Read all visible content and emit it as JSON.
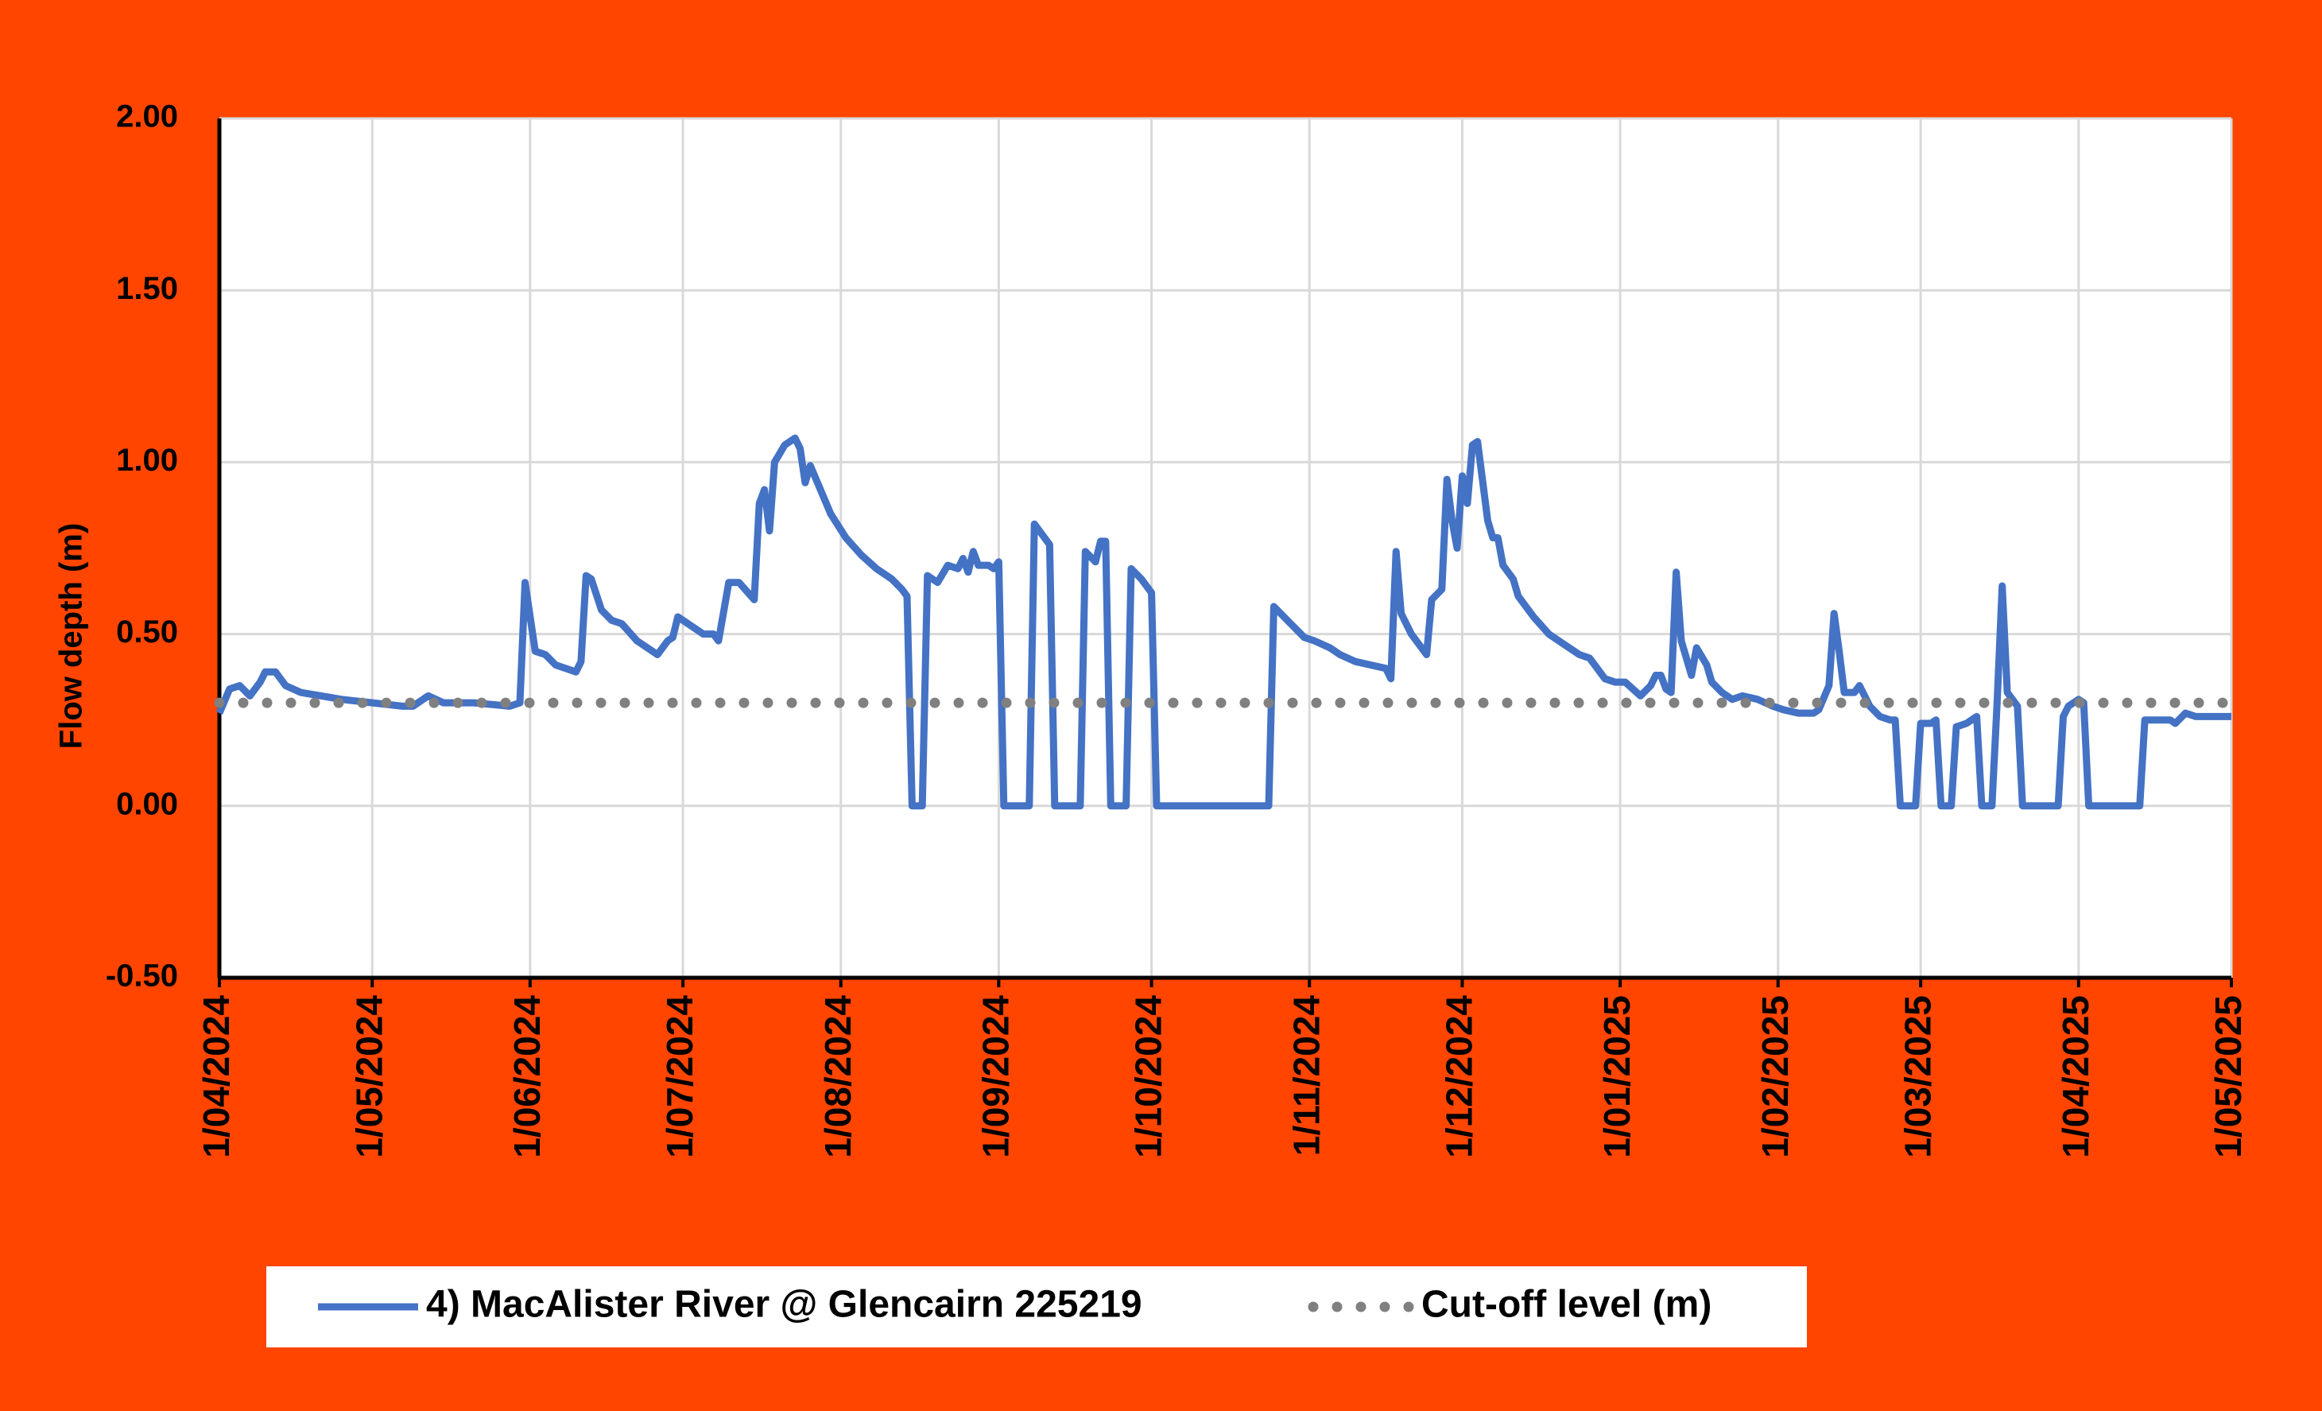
{
  "chart_data": {
    "type": "line",
    "y_label": "Flow depth (m)",
    "ylim": [
      -0.5,
      2
    ],
    "yticks": [
      {
        "value": -0.5,
        "label": "-0.50"
      },
      {
        "value": 0,
        "label": "0.00"
      },
      {
        "value": 0.5,
        "label": "0.50"
      },
      {
        "value": 1,
        "label": "1.00"
      },
      {
        "value": 1.5,
        "label": "1.50"
      },
      {
        "value": 2,
        "label": "2.00"
      }
    ],
    "xlim": [
      "2024-04-01",
      "2025-05-01"
    ],
    "xticks": [
      {
        "value": "2024-04-01",
        "label": "1/04/2024"
      },
      {
        "value": "2024-05-01",
        "label": "1/05/2024"
      },
      {
        "value": "2024-06-01",
        "label": "1/06/2024"
      },
      {
        "value": "2024-07-01",
        "label": "1/07/2024"
      },
      {
        "value": "2024-08-01",
        "label": "1/08/2024"
      },
      {
        "value": "2024-09-01",
        "label": "1/09/2024"
      },
      {
        "value": "2024-10-01",
        "label": "1/10/2024"
      },
      {
        "value": "2024-11-01",
        "label": "1/11/2024"
      },
      {
        "value": "2024-12-01",
        "label": "1/12/2024"
      },
      {
        "value": "2025-01-01",
        "label": "1/01/2025"
      },
      {
        "value": "2025-02-01",
        "label": "1/02/2025"
      },
      {
        "value": "2025-03-01",
        "label": "1/03/2025"
      },
      {
        "value": "2025-04-01",
        "label": "1/04/2025"
      },
      {
        "value": "2025-05-01",
        "label": "1/05/2025"
      }
    ],
    "grid": true,
    "legend": "bottom",
    "x": [
      "2024-04-01",
      "2024-04-03",
      "2024-04-05",
      "2024-04-07",
      "2024-04-09",
      "2024-04-10",
      "2024-04-12",
      "2024-04-14",
      "2024-04-17",
      "2024-04-21",
      "2024-04-25",
      "2024-05-01",
      "2024-05-07",
      "2024-05-09",
      "2024-05-12",
      "2024-05-15",
      "2024-05-21",
      "2024-05-28",
      "2024-05-30",
      "2024-05-31",
      "2024-06-01",
      "2024-06-02",
      "2024-06-04",
      "2024-06-06",
      "2024-06-10",
      "2024-06-11",
      "2024-06-12",
      "2024-06-13",
      "2024-06-15",
      "2024-06-17",
      "2024-06-19",
      "2024-06-22",
      "2024-06-26",
      "2024-06-28",
      "2024-06-29",
      "2024-06-30",
      "2024-07-02",
      "2024-07-05",
      "2024-07-07",
      "2024-07-08",
      "2024-07-10",
      "2024-07-12",
      "2024-07-15",
      "2024-07-16",
      "2024-07-17",
      "2024-07-18",
      "2024-07-19",
      "2024-07-21",
      "2024-07-23",
      "2024-07-24",
      "2024-07-25",
      "2024-07-26",
      "2024-07-28",
      "2024-07-30",
      "2024-08-02",
      "2024-08-05",
      "2024-08-08",
      "2024-08-11",
      "2024-08-13",
      "2024-08-14",
      "2024-08-15",
      "2024-08-17",
      "2024-08-18",
      "2024-08-20",
      "2024-08-22",
      "2024-08-24",
      "2024-08-25",
      "2024-08-26",
      "2024-08-27",
      "2024-08-28",
      "2024-08-30",
      "2024-08-31",
      "2024-09-01",
      "2024-09-02",
      "2024-09-07",
      "2024-09-08",
      "2024-09-10",
      "2024-09-11",
      "2024-09-12",
      "2024-09-17",
      "2024-09-18",
      "2024-09-20",
      "2024-09-21",
      "2024-09-22",
      "2024-09-23",
      "2024-09-26",
      "2024-09-27",
      "2024-09-29",
      "2024-10-01",
      "2024-10-02",
      "2024-10-24",
      "2024-10-25",
      "2024-10-27",
      "2024-10-29",
      "2024-10-31",
      "2024-11-02",
      "2024-11-05",
      "2024-11-07",
      "2024-11-10",
      "2024-11-13",
      "2024-11-16",
      "2024-11-17",
      "2024-11-18",
      "2024-11-19",
      "2024-11-21",
      "2024-11-24",
      "2024-11-25",
      "2024-11-27",
      "2024-11-28",
      "2024-11-29",
      "2024-11-30",
      "2024-12-01",
      "2024-12-02",
      "2024-12-03",
      "2024-12-04",
      "2024-12-06",
      "2024-12-07",
      "2024-12-08",
      "2024-12-09",
      "2024-12-11",
      "2024-12-12",
      "2024-12-15",
      "2024-12-18",
      "2024-12-21",
      "2024-12-24",
      "2024-12-26",
      "2024-12-27",
      "2024-12-29",
      "2024-12-31",
      "2025-01-02",
      "2025-01-05",
      "2025-01-07",
      "2025-01-08",
      "2025-01-09",
      "2025-01-10",
      "2025-01-11",
      "2025-01-12",
      "2025-01-13",
      "2025-01-15",
      "2025-01-16",
      "2025-01-18",
      "2025-01-19",
      "2025-01-21",
      "2025-01-23",
      "2025-01-25",
      "2025-01-28",
      "2025-01-31",
      "2025-02-02",
      "2025-02-05",
      "2025-02-08",
      "2025-02-09",
      "2025-02-11",
      "2025-02-12",
      "2025-02-13",
      "2025-02-14",
      "2025-02-16",
      "2025-02-17",
      "2025-02-19",
      "2025-02-21",
      "2025-02-23",
      "2025-02-24",
      "2025-02-25",
      "2025-02-28",
      "2025-03-01",
      "2025-03-03",
      "2025-03-04",
      "2025-03-05",
      "2025-03-07",
      "2025-03-08",
      "2025-03-10",
      "2025-03-12",
      "2025-03-13",
      "2025-03-15",
      "2025-03-16",
      "2025-03-17",
      "2025-03-18",
      "2025-03-20",
      "2025-03-21",
      "2025-03-28",
      "2025-03-29",
      "2025-03-30",
      "2025-04-01",
      "2025-04-02",
      "2025-04-03",
      "2025-04-13",
      "2025-04-14",
      "2025-04-19",
      "2025-04-20",
      "2025-04-22",
      "2025-04-24",
      "2025-04-27",
      "2025-05-01"
    ],
    "series": [
      {
        "name": "4) MacAlister River @ Glencairn 225219",
        "color": "#4472c4",
        "style": "solid",
        "values": [
          0.27,
          0.34,
          0.35,
          0.32,
          0.36,
          0.39,
          0.39,
          0.35,
          0.33,
          0.32,
          0.31,
          0.3,
          0.29,
          0.29,
          0.32,
          0.3,
          0.3,
          0.29,
          0.3,
          0.65,
          0.55,
          0.45,
          0.44,
          0.41,
          0.39,
          0.42,
          0.67,
          0.66,
          0.57,
          0.54,
          0.53,
          0.48,
          0.44,
          0.48,
          0.49,
          0.55,
          0.53,
          0.5,
          0.5,
          0.48,
          0.65,
          0.65,
          0.6,
          0.88,
          0.92,
          0.8,
          1,
          1.05,
          1.07,
          1.04,
          0.94,
          0.99,
          0.92,
          0.85,
          0.78,
          0.73,
          0.69,
          0.66,
          0.63,
          0.61,
          0,
          0,
          0.67,
          0.65,
          0.7,
          0.69,
          0.72,
          0.68,
          0.74,
          0.7,
          0.7,
          0.69,
          0.71,
          0,
          0,
          0.82,
          0.78,
          0.76,
          0,
          0,
          0.74,
          0.71,
          0.77,
          0.77,
          0,
          0,
          0.69,
          0.66,
          0.62,
          0,
          0,
          0.58,
          0.55,
          0.52,
          0.49,
          0.48,
          0.46,
          0.44,
          0.42,
          0.41,
          0.4,
          0.37,
          0.74,
          0.56,
          0.5,
          0.44,
          0.6,
          0.63,
          0.95,
          0.83,
          0.75,
          0.96,
          0.88,
          1.05,
          1.06,
          0.83,
          0.78,
          0.78,
          0.7,
          0.66,
          0.61,
          0.55,
          0.5,
          0.47,
          0.44,
          0.43,
          0.41,
          0.37,
          0.36,
          0.36,
          0.32,
          0.35,
          0.38,
          0.38,
          0.34,
          0.33,
          0.68,
          0.48,
          0.38,
          0.46,
          0.41,
          0.36,
          0.33,
          0.31,
          0.32,
          0.31,
          0.29,
          0.28,
          0.27,
          0.27,
          0.28,
          0.35,
          0.56,
          0.45,
          0.33,
          0.33,
          0.35,
          0.29,
          0.26,
          0.25,
          0.25,
          0,
          0,
          0.24,
          0.24,
          0.25,
          0,
          0,
          0.23,
          0.24,
          0.26,
          0,
          0,
          0.3,
          0.64,
          0.33,
          0.29,
          0,
          0,
          0.26,
          0.29,
          0.31,
          0.3,
          0,
          0,
          0.25,
          0.25,
          0.24,
          0.27,
          0.26,
          0.26,
          0.26
        ]
      },
      {
        "name": "Cut-off level (m)",
        "color": "#808080",
        "style": "dotted",
        "x": [
          "2024-04-01",
          "2025-05-01"
        ],
        "values": [
          0.3,
          0.3
        ]
      }
    ]
  }
}
